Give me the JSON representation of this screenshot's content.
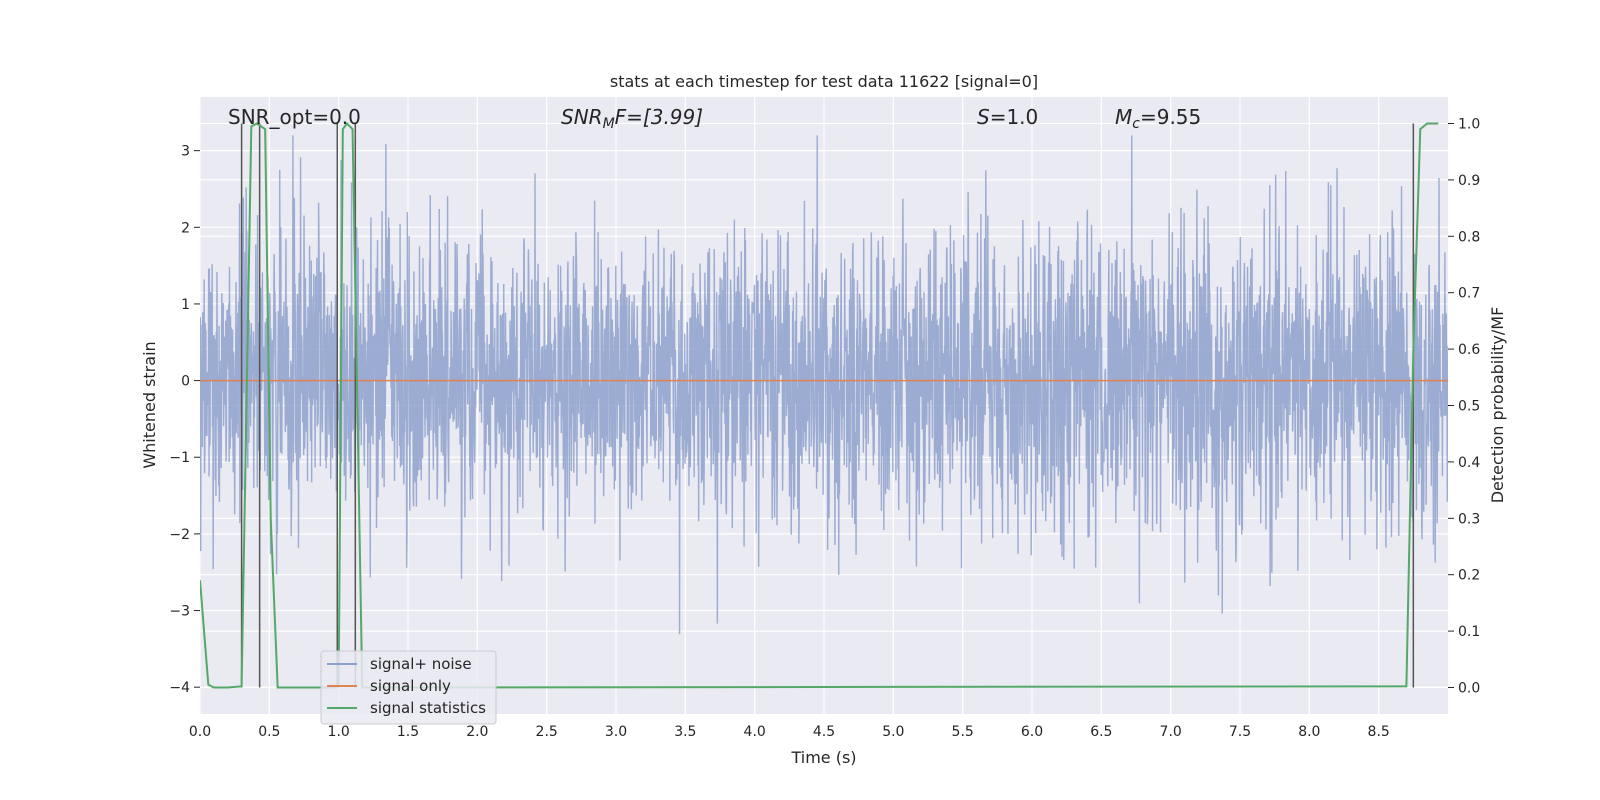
{
  "chart_data": {
    "type": "line",
    "title": "stats at each timestep for test data 11622 [signal=0]",
    "xlabel": "Time (s)",
    "ylabel_left": "Whitened strain",
    "ylabel_right": "Detection probability/MF",
    "xlim": [
      0.0,
      9.0
    ],
    "ylim_left": [
      -4.35,
      3.7
    ],
    "ylim_right": [
      -0.047,
      1.047
    ],
    "x_ticks": [
      "0.0",
      "0.5",
      "1.0",
      "1.5",
      "2.0",
      "2.5",
      "3.0",
      "3.5",
      "4.0",
      "4.5",
      "5.0",
      "5.5",
      "6.0",
      "6.5",
      "7.0",
      "7.5",
      "8.0",
      "8.5"
    ],
    "y_ticks_left": [
      "3",
      "2",
      "1",
      "0",
      "−1",
      "−2",
      "−3",
      "−4"
    ],
    "y_ticks_right": [
      "1.0",
      "0.9",
      "0.8",
      "0.7",
      "0.6",
      "0.5",
      "0.4",
      "0.3",
      "0.2",
      "0.1",
      "0.0"
    ],
    "grid": true,
    "legend_placement": "lower-left",
    "annotations": {
      "snr_opt": "SNR_opt=0.0",
      "snr_mf_prefix": "SNR",
      "snr_mf_sub": "M",
      "snr_mf_suffix": "F=[3.99]",
      "s_prefix": "S",
      "s_suffix": "=1.0",
      "mc_prefix": "M",
      "mc_sub": "c",
      "mc_suffix": "=9.55"
    },
    "series": [
      {
        "name": "signal+ noise",
        "axis": "left",
        "color": "#8da0cb",
        "note_values": "random whitened noise, roughly within [-4, 3.2]"
      },
      {
        "name": "signal only",
        "axis": "left",
        "color": "#dd8452",
        "x": [
          0.0,
          9.0
        ],
        "y": [
          0.0,
          0.0
        ]
      },
      {
        "name": "signal statistics",
        "axis": "right",
        "color": "#55a868",
        "x": [
          0.0,
          0.06,
          0.1,
          0.2,
          0.3,
          0.37,
          0.41,
          0.47,
          0.51,
          0.56,
          0.6,
          0.98,
          1.0,
          1.03,
          1.06,
          1.1,
          1.17,
          1.21,
          8.7,
          8.75,
          8.8,
          8.85,
          8.93
        ],
        "y": [
          0.19,
          0.005,
          0.0,
          0.0,
          0.002,
          0.995,
          1.0,
          0.99,
          0.3,
          0.0,
          0.0,
          0.0,
          0.002,
          0.99,
          1.0,
          0.99,
          0.0,
          0.0,
          0.002,
          0.6,
          0.99,
          1.0,
          1.0
        ]
      }
    ],
    "vertical_lines_x": [
      0.3,
      0.43,
      0.99,
      1.12,
      8.75
    ],
    "colors": {
      "background": "#eaeaf2",
      "grid": "#ffffff",
      "noise": "#8da0cb",
      "signal": "#dd8452",
      "stats": "#55a868",
      "vline": "#555555"
    }
  }
}
